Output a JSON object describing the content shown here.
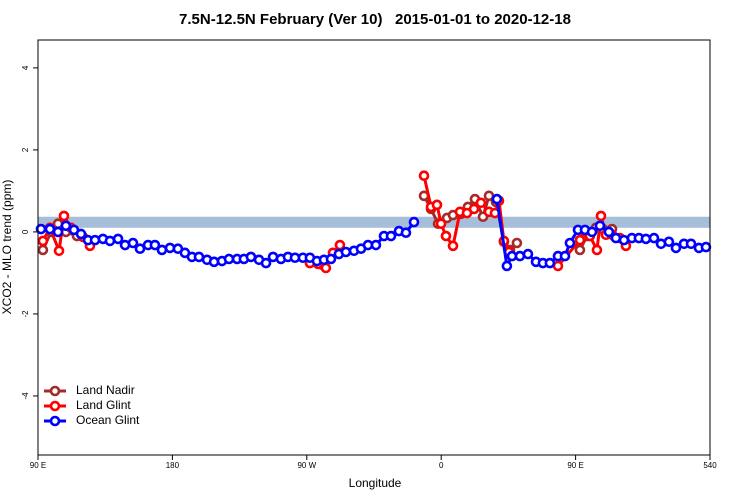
{
  "chart_data": {
    "type": "line",
    "title": "7.5N-12.5N February (Ver 10)   2015-01-01 to 2020-12-18",
    "xlabel": "Longitude",
    "ylabel": "XCO2 - MLO trend (ppm)",
    "xlim": [
      90,
      540
    ],
    "ylim": [
      -5.44,
      4.68
    ],
    "xticks": [
      {
        "value": 90,
        "label": "90 E"
      },
      180,
      {
        "value": 270,
        "label": "90 W"
      },
      {
        "value": 360,
        "label": "0"
      },
      {
        "value": 450,
        "label": "90 E"
      },
      540
    ],
    "yticks": [
      4,
      2,
      0,
      -2,
      -4
    ],
    "band": {
      "ylim": [
        0.1,
        0.37
      ],
      "color": "#a7bedb"
    },
    "legend": "bottom-left",
    "series": [
      {
        "name": "Land Nadir",
        "color": "#a52a2a",
        "x": [
          93.3,
          98.7,
          103.4,
          108.7,
          116.1,
          null,
          280.8,
          null,
          348.5,
          353.2,
          357.9,
          363.9,
          367.9,
          373.2,
          377.9,
          382.6,
          388.0,
          392.0,
          396.7,
          402.0,
          406.1,
          410.7,
          null,
          452.9,
          457.6,
          463.6,
          468.3,
          474.4
        ],
        "values": [
          -0.44,
          0,
          0.2,
          0,
          -0.1,
          null,
          -0.81,
          null,
          0.88,
          0.56,
          0.2,
          0.34,
          0.41,
          0.44,
          0.61,
          0.8,
          0.37,
          0.88,
          0.73,
          -0.24,
          -0.44,
          -0.27,
          null,
          -0.44,
          -0.1,
          0.1,
          0.07,
          0.07
        ]
      },
      {
        "name": "Land Glint",
        "color": "#ff0000",
        "x": [
          93.3,
          98.0,
          104.1,
          107.4,
          112.1,
          120.1,
          124.8,
          null,
          272.1,
          277.5,
          282.8,
          287.5,
          292.2,
          null,
          348.5,
          353.2,
          357.2,
          359.9,
          363.2,
          367.9,
          372.6,
          377.3,
          382.0,
          386.6,
          392.0,
          396.0,
          398.7,
          402.0,
          405.4,
          null,
          438.2,
          452.9,
          456.3,
          459.6,
          464.3,
          467.0,
          470.3,
          474.4,
          479.7,
          483.7
        ],
        "values": [
          -0.22,
          0.1,
          -0.46,
          0.39,
          0.1,
          -0.12,
          -0.34,
          null,
          -0.76,
          -0.78,
          -0.88,
          -0.51,
          -0.32,
          null,
          1.37,
          0.61,
          0.66,
          0.2,
          -0.1,
          -0.34,
          0.49,
          0.46,
          0.56,
          0.71,
          0.49,
          0.46,
          0.76,
          -0.22,
          -0.49,
          null,
          -0.83,
          -0.2,
          0,
          -0.1,
          -0.44,
          0.39,
          -0.07,
          -0.07,
          -0.15,
          -0.34
        ]
      },
      {
        "name": "Ocean Glint",
        "color": "#0000ff",
        "x": [
          92.0,
          98.0,
          103.4,
          108.7,
          114.1,
          118.8,
          123.5,
          128.2,
          133.5,
          138.2,
          143.6,
          148.3,
          153.6,
          158.3,
          163.7,
          168.3,
          173.0,
          178.4,
          183.7,
          188.4,
          193.1,
          197.8,
          203.2,
          207.9,
          213.2,
          217.9,
          223.3,
          227.9,
          232.6,
          238.0,
          242.7,
          247.4,
          252.7,
          257.4,
          262.1,
          267.4,
          272.1,
          276.8,
          281.5,
          286.2,
          291.5,
          296.2,
          301.6,
          306.3,
          311.0,
          316.3,
          321.7,
          326.4,
          331.7,
          336.4,
          341.8,
          null,
          397.3,
          404.0,
          407.4,
          412.7,
          418.1,
          423.5,
          428.1,
          432.8,
          438.2,
          442.9,
          446.2,
          451.6,
          456.3,
          461.0,
          466.3,
          472.3,
          477.0,
          482.4,
          487.7,
          492.4,
          497.1,
          502.5,
          507.2,
          512.5,
          517.2,
          522.6,
          527.3,
          532.6,
          537.3
        ],
        "values": [
          0.07,
          0.07,
          0,
          0.15,
          0.05,
          -0.05,
          -0.2,
          -0.2,
          -0.17,
          -0.22,
          -0.17,
          -0.32,
          -0.27,
          -0.41,
          -0.32,
          -0.32,
          -0.44,
          -0.39,
          -0.41,
          -0.51,
          -0.61,
          -0.61,
          -0.68,
          -0.73,
          -0.71,
          -0.66,
          -0.66,
          -0.66,
          -0.61,
          -0.68,
          -0.76,
          -0.61,
          -0.66,
          -0.61,
          -0.63,
          -0.63,
          -0.63,
          -0.71,
          -0.68,
          -0.66,
          -0.54,
          -0.49,
          -0.46,
          -0.41,
          -0.32,
          -0.32,
          -0.1,
          -0.1,
          0.02,
          -0.02,
          0.24,
          null,
          0.8,
          -0.83,
          -0.59,
          -0.59,
          -0.54,
          -0.73,
          -0.76,
          -0.76,
          -0.59,
          -0.59,
          -0.27,
          0.05,
          0.05,
          0,
          0.15,
          0,
          -0.15,
          -0.2,
          -0.15,
          -0.15,
          -0.17,
          -0.15,
          -0.29,
          -0.24,
          -0.39,
          -0.29,
          -0.29,
          -0.39,
          -0.37
        ]
      }
    ]
  }
}
